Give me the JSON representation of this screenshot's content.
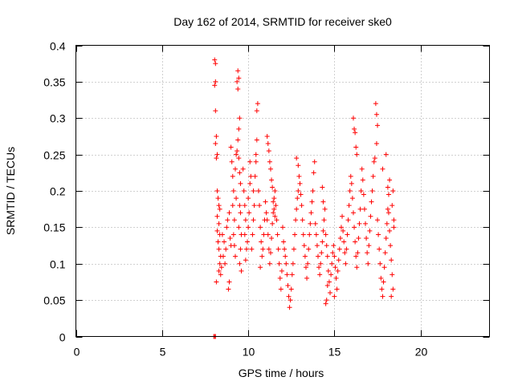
{
  "chart_data": {
    "type": "scatter",
    "title": "Day 162 of 2014, SRMTID for receiver ske0",
    "xlabel": "GPS time / hours",
    "ylabel": "SRMTID / TECUs",
    "xlim": [
      0,
      24
    ],
    "ylim": [
      0,
      0.4
    ],
    "x_ticks": [
      0,
      5,
      10,
      15,
      20
    ],
    "x_tick_labels": [
      "0",
      "5",
      "10",
      "15",
      "20"
    ],
    "y_ticks": [
      0,
      0.05,
      0.1,
      0.15,
      0.2,
      0.25,
      0.3,
      0.35,
      0.4
    ],
    "y_tick_labels": [
      "0",
      "0.05",
      "0.1",
      "0.15",
      "0.2",
      "0.25",
      "0.3",
      "0.35",
      "0.4"
    ],
    "grid": true,
    "marker": "+",
    "series": [
      {
        "name": "SRMTID",
        "color": "#ff0000",
        "points": [
          [
            8.0,
            0.0
          ],
          [
            8.05,
            0.0
          ],
          [
            8.1,
            0.0
          ],
          [
            8.05,
            0.38
          ],
          [
            8.1,
            0.375
          ],
          [
            8.1,
            0.35
          ],
          [
            8.05,
            0.345
          ],
          [
            8.1,
            0.31
          ],
          [
            8.15,
            0.275
          ],
          [
            8.1,
            0.265
          ],
          [
            8.2,
            0.25
          ],
          [
            8.15,
            0.245
          ],
          [
            8.2,
            0.2
          ],
          [
            8.25,
            0.19
          ],
          [
            8.3,
            0.18
          ],
          [
            8.35,
            0.175
          ],
          [
            8.2,
            0.165
          ],
          [
            8.3,
            0.155
          ],
          [
            8.2,
            0.145
          ],
          [
            8.35,
            0.14
          ],
          [
            8.25,
            0.13
          ],
          [
            8.3,
            0.12
          ],
          [
            8.4,
            0.11
          ],
          [
            8.35,
            0.1
          ],
          [
            8.45,
            0.095
          ],
          [
            8.4,
            0.085
          ],
          [
            8.15,
            0.075
          ],
          [
            8.3,
            0.09
          ],
          [
            8.5,
            0.14
          ],
          [
            8.6,
            0.13
          ],
          [
            8.7,
            0.12
          ],
          [
            8.55,
            0.11
          ],
          [
            8.8,
            0.16
          ],
          [
            8.9,
            0.17
          ],
          [
            8.75,
            0.15
          ],
          [
            8.65,
            0.1
          ],
          [
            8.9,
            0.075
          ],
          [
            8.85,
            0.065
          ],
          [
            8.95,
            0.135
          ],
          [
            9.0,
            0.125
          ],
          [
            9.0,
            0.26
          ],
          [
            9.05,
            0.24
          ],
          [
            9.1,
            0.22
          ],
          [
            9.15,
            0.2
          ],
          [
            9.1,
            0.18
          ],
          [
            9.2,
            0.16
          ],
          [
            9.15,
            0.14
          ],
          [
            9.2,
            0.125
          ],
          [
            9.25,
            0.11
          ],
          [
            9.3,
            0.19
          ],
          [
            9.25,
            0.23
          ],
          [
            9.3,
            0.25
          ],
          [
            9.4,
            0.365
          ],
          [
            9.45,
            0.355
          ],
          [
            9.35,
            0.35
          ],
          [
            9.4,
            0.34
          ],
          [
            9.5,
            0.3
          ],
          [
            9.45,
            0.285
          ],
          [
            9.4,
            0.27
          ],
          [
            9.35,
            0.255
          ],
          [
            9.45,
            0.245
          ],
          [
            9.5,
            0.225
          ],
          [
            9.55,
            0.21
          ],
          [
            9.5,
            0.18
          ],
          [
            9.55,
            0.17
          ],
          [
            9.45,
            0.15
          ],
          [
            9.6,
            0.14
          ],
          [
            9.55,
            0.12
          ],
          [
            9.5,
            0.1
          ],
          [
            9.6,
            0.09
          ],
          [
            9.7,
            0.23
          ],
          [
            9.75,
            0.2
          ],
          [
            9.8,
            0.18
          ],
          [
            9.85,
            0.16
          ],
          [
            9.8,
            0.14
          ],
          [
            9.9,
            0.12
          ],
          [
            9.85,
            0.105
          ],
          [
            9.95,
            0.13
          ],
          [
            10.0,
            0.15
          ],
          [
            10.05,
            0.17
          ],
          [
            10.0,
            0.19
          ],
          [
            10.1,
            0.21
          ],
          [
            10.1,
            0.24
          ],
          [
            10.15,
            0.22
          ],
          [
            10.2,
            0.12
          ],
          [
            10.25,
            0.14
          ],
          [
            10.3,
            0.16
          ],
          [
            10.35,
            0.18
          ],
          [
            10.3,
            0.2
          ],
          [
            10.4,
            0.22
          ],
          [
            10.45,
            0.25
          ],
          [
            10.5,
            0.27
          ],
          [
            10.5,
            0.31
          ],
          [
            10.55,
            0.32
          ],
          [
            10.45,
            0.24
          ],
          [
            10.6,
            0.2
          ],
          [
            10.65,
            0.18
          ],
          [
            10.7,
            0.15
          ],
          [
            10.75,
            0.13
          ],
          [
            10.8,
            0.11
          ],
          [
            10.7,
            0.095
          ],
          [
            10.85,
            0.12
          ],
          [
            10.9,
            0.14
          ],
          [
            10.95,
            0.16
          ],
          [
            11.0,
            0.185
          ],
          [
            11.05,
            0.17
          ],
          [
            11.1,
            0.16
          ],
          [
            11.15,
            0.14
          ],
          [
            11.2,
            0.12
          ],
          [
            11.25,
            0.1
          ],
          [
            11.3,
            0.115
          ],
          [
            11.35,
            0.135
          ],
          [
            11.4,
            0.155
          ],
          [
            11.45,
            0.17
          ],
          [
            11.5,
            0.19
          ],
          [
            11.55,
            0.2
          ],
          [
            11.6,
            0.18
          ],
          [
            11.65,
            0.16
          ],
          [
            11.7,
            0.14
          ],
          [
            11.75,
            0.12
          ],
          [
            11.8,
            0.1
          ],
          [
            11.85,
            0.08
          ],
          [
            11.9,
            0.065
          ],
          [
            11.95,
            0.09
          ],
          [
            11.1,
            0.275
          ],
          [
            11.15,
            0.265
          ],
          [
            11.2,
            0.255
          ],
          [
            11.25,
            0.24
          ],
          [
            11.3,
            0.23
          ],
          [
            11.35,
            0.215
          ],
          [
            11.4,
            0.205
          ],
          [
            11.45,
            0.185
          ],
          [
            11.5,
            0.175
          ],
          [
            11.55,
            0.165
          ],
          [
            12.0,
            0.15
          ],
          [
            12.05,
            0.13
          ],
          [
            12.1,
            0.12
          ],
          [
            12.15,
            0.11
          ],
          [
            12.2,
            0.1
          ],
          [
            12.25,
            0.085
          ],
          [
            12.3,
            0.07
          ],
          [
            12.35,
            0.055
          ],
          [
            12.4,
            0.04
          ],
          [
            12.45,
            0.05
          ],
          [
            12.5,
            0.065
          ],
          [
            12.55,
            0.085
          ],
          [
            12.6,
            0.1
          ],
          [
            12.65,
            0.12
          ],
          [
            12.7,
            0.14
          ],
          [
            12.75,
            0.16
          ],
          [
            12.8,
            0.175
          ],
          [
            12.85,
            0.19
          ],
          [
            12.9,
            0.2
          ],
          [
            12.95,
            0.22
          ],
          [
            12.8,
            0.245
          ],
          [
            12.9,
            0.235
          ],
          [
            13.0,
            0.21
          ],
          [
            13.05,
            0.195
          ],
          [
            13.1,
            0.18
          ],
          [
            13.15,
            0.16
          ],
          [
            13.2,
            0.14
          ],
          [
            13.25,
            0.125
          ],
          [
            13.3,
            0.11
          ],
          [
            13.35,
            0.095
          ],
          [
            13.4,
            0.08
          ],
          [
            13.45,
            0.1
          ],
          [
            13.5,
            0.12
          ],
          [
            13.55,
            0.14
          ],
          [
            13.6,
            0.155
          ],
          [
            13.65,
            0.17
          ],
          [
            13.7,
            0.185
          ],
          [
            13.75,
            0.2
          ],
          [
            13.8,
            0.225
          ],
          [
            13.85,
            0.24
          ],
          [
            13.9,
            0.155
          ],
          [
            13.95,
            0.14
          ],
          [
            14.0,
            0.125
          ],
          [
            14.05,
            0.11
          ],
          [
            14.1,
            0.095
          ],
          [
            14.15,
            0.085
          ],
          [
            14.2,
            0.1
          ],
          [
            14.25,
            0.115
          ],
          [
            14.3,
            0.13
          ],
          [
            14.35,
            0.145
          ],
          [
            14.4,
            0.16
          ],
          [
            14.45,
            0.175
          ],
          [
            14.3,
            0.205
          ],
          [
            14.35,
            0.185
          ],
          [
            14.5,
            0.14
          ],
          [
            14.55,
            0.125
          ],
          [
            14.6,
            0.11
          ],
          [
            14.65,
            0.09
          ],
          [
            14.7,
            0.075
          ],
          [
            14.75,
            0.06
          ],
          [
            14.5,
            0.045
          ],
          [
            14.55,
            0.05
          ],
          [
            14.6,
            0.07
          ],
          [
            14.8,
            0.085
          ],
          [
            14.85,
            0.1
          ],
          [
            14.9,
            0.115
          ],
          [
            14.95,
            0.125
          ],
          [
            15.0,
            0.11
          ],
          [
            15.05,
            0.095
          ],
          [
            15.1,
            0.08
          ],
          [
            15.15,
            0.065
          ],
          [
            15.0,
            0.055
          ],
          [
            15.2,
            0.09
          ],
          [
            15.25,
            0.105
          ],
          [
            15.3,
            0.12
          ],
          [
            15.35,
            0.135
          ],
          [
            15.4,
            0.15
          ],
          [
            15.45,
            0.165
          ],
          [
            15.5,
            0.145
          ],
          [
            15.55,
            0.13
          ],
          [
            15.6,
            0.115
          ],
          [
            15.65,
            0.1
          ],
          [
            15.7,
            0.12
          ],
          [
            15.75,
            0.14
          ],
          [
            15.8,
            0.16
          ],
          [
            15.85,
            0.18
          ],
          [
            15.9,
            0.2
          ],
          [
            15.95,
            0.22
          ],
          [
            16.0,
            0.21
          ],
          [
            16.05,
            0.19
          ],
          [
            16.1,
            0.17
          ],
          [
            16.15,
            0.15
          ],
          [
            16.2,
            0.13
          ],
          [
            16.25,
            0.11
          ],
          [
            16.3,
            0.095
          ],
          [
            16.35,
            0.115
          ],
          [
            16.4,
            0.135
          ],
          [
            16.45,
            0.155
          ],
          [
            16.5,
            0.175
          ],
          [
            16.55,
            0.2
          ],
          [
            16.1,
            0.3
          ],
          [
            16.15,
            0.285
          ],
          [
            16.2,
            0.28
          ],
          [
            16.25,
            0.26
          ],
          [
            16.3,
            0.25
          ],
          [
            16.6,
            0.23
          ],
          [
            16.65,
            0.215
          ],
          [
            16.7,
            0.195
          ],
          [
            16.75,
            0.175
          ],
          [
            16.8,
            0.155
          ],
          [
            16.85,
            0.135
          ],
          [
            16.9,
            0.115
          ],
          [
            16.95,
            0.1
          ],
          [
            17.0,
            0.125
          ],
          [
            17.05,
            0.145
          ],
          [
            17.1,
            0.165
          ],
          [
            17.15,
            0.185
          ],
          [
            17.2,
            0.2
          ],
          [
            17.25,
            0.22
          ],
          [
            17.3,
            0.24
          ],
          [
            17.4,
            0.32
          ],
          [
            17.45,
            0.305
          ],
          [
            17.5,
            0.29
          ],
          [
            17.45,
            0.265
          ],
          [
            17.35,
            0.245
          ],
          [
            17.5,
            0.16
          ],
          [
            17.55,
            0.14
          ],
          [
            17.6,
            0.12
          ],
          [
            17.65,
            0.1
          ],
          [
            17.7,
            0.08
          ],
          [
            17.75,
            0.065
          ],
          [
            17.8,
            0.055
          ],
          [
            17.85,
            0.075
          ],
          [
            17.9,
            0.095
          ],
          [
            17.95,
            0.115
          ],
          [
            18.0,
            0.135
          ],
          [
            18.05,
            0.155
          ],
          [
            18.1,
            0.175
          ],
          [
            18.15,
            0.195
          ],
          [
            18.2,
            0.215
          ],
          [
            17.8,
            0.23
          ],
          [
            18.0,
            0.25
          ],
          [
            18.1,
            0.205
          ],
          [
            18.15,
            0.17
          ],
          [
            18.2,
            0.145
          ],
          [
            18.25,
            0.125
          ],
          [
            18.3,
            0.105
          ],
          [
            18.35,
            0.085
          ],
          [
            18.4,
            0.065
          ],
          [
            18.3,
            0.055
          ],
          [
            18.45,
            0.15
          ],
          [
            18.45,
            0.16
          ],
          [
            18.4,
            0.2
          ],
          [
            18.35,
            0.18
          ]
        ]
      }
    ]
  }
}
